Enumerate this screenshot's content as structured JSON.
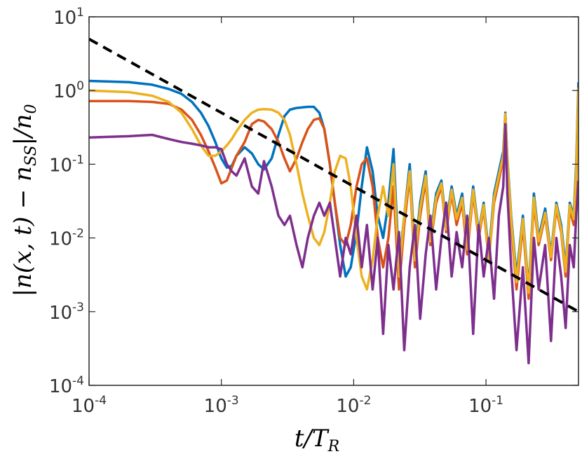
{
  "chart_data": {
    "type": "line",
    "xlabel": "t/T_R",
    "ylabel": "|n(x,t) − n_SS|/n_0",
    "x_scale": "log",
    "y_scale": "log",
    "xlim": [
      0.0001,
      0.5
    ],
    "ylim": [
      0.0001,
      10
    ],
    "grid": false,
    "x_ticks": [
      {
        "value": 0.0001,
        "base": "10",
        "exp": "-4"
      },
      {
        "value": 0.001,
        "base": "10",
        "exp": "-3"
      },
      {
        "value": 0.01,
        "base": "10",
        "exp": "-2"
      },
      {
        "value": 0.1,
        "base": "10",
        "exp": "-1"
      }
    ],
    "y_ticks": [
      {
        "value": 0.0001,
        "base": "10",
        "exp": "-4"
      },
      {
        "value": 0.001,
        "base": "10",
        "exp": "-3"
      },
      {
        "value": 0.01,
        "base": "10",
        "exp": "-2"
      },
      {
        "value": 0.1,
        "base": "10",
        "exp": "-1"
      },
      {
        "value": 1,
        "base": "10",
        "exp": "0"
      },
      {
        "value": 10,
        "base": "10",
        "exp": "1"
      }
    ],
    "series": [
      {
        "color": "#0072BD",
        "x": [
          0.0001,
          0.0002,
          0.0003,
          0.0004,
          0.0005,
          0.0006,
          0.0007,
          0.0008,
          0.0009,
          0.001,
          0.0011,
          0.0012,
          0.0013,
          0.0015,
          0.0017,
          0.0019,
          0.0021,
          0.0024,
          0.0027,
          0.003,
          0.0033,
          0.0037,
          0.0041,
          0.0045,
          0.005,
          0.0055,
          0.006,
          0.0066,
          0.0072,
          0.0079,
          0.0087,
          0.0095,
          0.0105,
          0.0115,
          0.0126,
          0.0139,
          0.0152,
          0.0167,
          0.0183,
          0.02,
          0.022,
          0.0241,
          0.0265,
          0.029,
          0.0318,
          0.035,
          0.038,
          0.042,
          0.046,
          0.05,
          0.055,
          0.06,
          0.066,
          0.072,
          0.08,
          0.088,
          0.096,
          0.105,
          0.115,
          0.125,
          0.135,
          0.14,
          0.145,
          0.155,
          0.17,
          0.19,
          0.21,
          0.23,
          0.25,
          0.28,
          0.31,
          0.34,
          0.37,
          0.4,
          0.43,
          0.46,
          0.48,
          0.5
        ],
        "y": [
          1.35,
          1.3,
          1.2,
          1.05,
          0.9,
          0.7,
          0.5,
          0.33,
          0.2,
          0.12,
          0.09,
          0.095,
          0.13,
          0.17,
          0.14,
          0.1,
          0.085,
          0.12,
          0.25,
          0.45,
          0.55,
          0.58,
          0.59,
          0.6,
          0.6,
          0.5,
          0.3,
          0.1,
          0.03,
          0.008,
          0.003,
          0.004,
          0.012,
          0.05,
          0.17,
          0.08,
          0.02,
          0.01,
          0.03,
          0.16,
          0.004,
          0.02,
          0.1,
          0.006,
          0.03,
          0.08,
          0.01,
          0.04,
          0.06,
          0.015,
          0.05,
          0.02,
          0.04,
          0.008,
          0.05,
          0.012,
          0.03,
          0.006,
          0.04,
          0.08,
          0.15,
          0.5,
          0.12,
          0.02,
          0.003,
          0.02,
          0.002,
          0.04,
          0.01,
          0.025,
          0.006,
          0.03,
          0.015,
          0.004,
          0.03,
          0.02,
          0.1,
          1.3
        ]
      },
      {
        "color": "#D95319",
        "x": [
          0.0001,
          0.0002,
          0.0003,
          0.0004,
          0.0005,
          0.0006,
          0.0007,
          0.0008,
          0.0009,
          0.001,
          0.0011,
          0.0012,
          0.0013,
          0.0015,
          0.0017,
          0.0019,
          0.0021,
          0.0024,
          0.0027,
          0.003,
          0.0033,
          0.0037,
          0.0041,
          0.0045,
          0.005,
          0.0055,
          0.006,
          0.0066,
          0.0072,
          0.0079,
          0.0087,
          0.0095,
          0.0105,
          0.0115,
          0.0126,
          0.0139,
          0.0152,
          0.0167,
          0.0183,
          0.02,
          0.022,
          0.0241,
          0.0265,
          0.029,
          0.0318,
          0.035,
          0.038,
          0.042,
          0.046,
          0.05,
          0.055,
          0.06,
          0.066,
          0.072,
          0.08,
          0.088,
          0.096,
          0.105,
          0.115,
          0.125,
          0.135,
          0.14,
          0.145,
          0.155,
          0.17,
          0.19,
          0.21,
          0.23,
          0.25,
          0.28,
          0.31,
          0.34,
          0.37,
          0.4,
          0.43,
          0.46,
          0.48,
          0.5
        ],
        "y": [
          0.72,
          0.72,
          0.7,
          0.66,
          0.55,
          0.4,
          0.25,
          0.15,
          0.09,
          0.055,
          0.06,
          0.09,
          0.13,
          0.2,
          0.35,
          0.4,
          0.38,
          0.3,
          0.2,
          0.12,
          0.08,
          0.12,
          0.2,
          0.3,
          0.4,
          0.42,
          0.3,
          0.1,
          0.03,
          0.01,
          0.008,
          0.015,
          0.05,
          0.1,
          0.12,
          0.05,
          0.01,
          0.004,
          0.01,
          0.05,
          0.002,
          0.015,
          0.07,
          0.004,
          0.02,
          0.06,
          0.008,
          0.03,
          0.05,
          0.012,
          0.04,
          0.015,
          0.03,
          0.006,
          0.04,
          0.01,
          0.025,
          0.005,
          0.03,
          0.06,
          0.12,
          0.45,
          0.1,
          0.015,
          0.002,
          0.015,
          0.0015,
          0.03,
          0.008,
          0.02,
          0.005,
          0.025,
          0.012,
          0.003,
          0.025,
          0.015,
          0.06,
          0.8
        ]
      },
      {
        "color": "#EDB120",
        "x": [
          0.0001,
          0.0002,
          0.0003,
          0.0004,
          0.0005,
          0.0006,
          0.0007,
          0.0008,
          0.0009,
          0.001,
          0.0011,
          0.0012,
          0.0013,
          0.0015,
          0.0017,
          0.0019,
          0.0021,
          0.0024,
          0.0027,
          0.003,
          0.0033,
          0.0037,
          0.0041,
          0.0045,
          0.005,
          0.0055,
          0.006,
          0.0066,
          0.0072,
          0.0079,
          0.0087,
          0.0095,
          0.0105,
          0.0115,
          0.0126,
          0.0139,
          0.0152,
          0.0167,
          0.0183,
          0.02,
          0.022,
          0.0241,
          0.0265,
          0.029,
          0.0318,
          0.035,
          0.038,
          0.042,
          0.046,
          0.05,
          0.055,
          0.06,
          0.066,
          0.072,
          0.08,
          0.088,
          0.096,
          0.105,
          0.115,
          0.125,
          0.135,
          0.14,
          0.145,
          0.155,
          0.17,
          0.19,
          0.21,
          0.23,
          0.25,
          0.28,
          0.31,
          0.34,
          0.37,
          0.4,
          0.43,
          0.46,
          0.48,
          0.5
        ],
        "y": [
          1.0,
          0.95,
          0.85,
          0.7,
          0.5,
          0.3,
          0.18,
          0.13,
          0.13,
          0.15,
          0.18,
          0.22,
          0.28,
          0.4,
          0.5,
          0.55,
          0.56,
          0.55,
          0.5,
          0.4,
          0.25,
          0.1,
          0.04,
          0.02,
          0.01,
          0.008,
          0.012,
          0.03,
          0.08,
          0.13,
          0.12,
          0.05,
          0.01,
          0.003,
          0.002,
          0.005,
          0.02,
          0.05,
          0.02,
          0.1,
          0.003,
          0.02,
          0.08,
          0.005,
          0.025,
          0.07,
          0.009,
          0.035,
          0.055,
          0.013,
          0.045,
          0.018,
          0.035,
          0.007,
          0.045,
          0.011,
          0.028,
          0.005,
          0.035,
          0.07,
          0.13,
          0.48,
          0.11,
          0.018,
          0.0025,
          0.018,
          0.0018,
          0.035,
          0.009,
          0.022,
          0.0055,
          0.028,
          0.013,
          0.0035,
          0.028,
          0.018,
          0.08,
          1.1
        ]
      },
      {
        "color": "#7E2F8E",
        "x": [
          0.0001,
          0.0002,
          0.0003,
          0.0004,
          0.0005,
          0.0006,
          0.0007,
          0.0008,
          0.0009,
          0.001,
          0.0011,
          0.0012,
          0.0013,
          0.0015,
          0.0017,
          0.0019,
          0.0021,
          0.0024,
          0.0027,
          0.003,
          0.0033,
          0.0037,
          0.0041,
          0.0045,
          0.005,
          0.0055,
          0.006,
          0.0066,
          0.0072,
          0.0079,
          0.0087,
          0.0095,
          0.0105,
          0.0115,
          0.0126,
          0.0139,
          0.0152,
          0.0167,
          0.0183,
          0.02,
          0.022,
          0.0241,
          0.0265,
          0.029,
          0.0318,
          0.035,
          0.038,
          0.042,
          0.046,
          0.05,
          0.055,
          0.06,
          0.066,
          0.072,
          0.08,
          0.088,
          0.096,
          0.105,
          0.115,
          0.125,
          0.135,
          0.14,
          0.145,
          0.155,
          0.17,
          0.19,
          0.21,
          0.23,
          0.25,
          0.28,
          0.31,
          0.34,
          0.37,
          0.4,
          0.43,
          0.46,
          0.48,
          0.5
        ],
        "y": [
          0.23,
          0.24,
          0.25,
          0.22,
          0.2,
          0.19,
          0.18,
          0.17,
          0.17,
          0.16,
          0.1,
          0.08,
          0.07,
          0.12,
          0.05,
          0.04,
          0.11,
          0.05,
          0.02,
          0.015,
          0.02,
          0.008,
          0.004,
          0.01,
          0.02,
          0.03,
          0.02,
          0.03,
          0.01,
          0.003,
          0.01,
          0.006,
          0.02,
          0.004,
          0.015,
          0.002,
          0.01,
          0.0005,
          0.008,
          0.002,
          0.012,
          0.0003,
          0.004,
          0.015,
          0.0008,
          0.006,
          0.02,
          0.002,
          0.01,
          0.03,
          0.003,
          0.012,
          0.004,
          0.02,
          0.0005,
          0.015,
          0.003,
          0.01,
          0.0015,
          0.02,
          0.05,
          0.35,
          0.04,
          0.004,
          0.0003,
          0.004,
          0.0002,
          0.01,
          0.002,
          0.008,
          0.0004,
          0.01,
          0.003,
          0.0006,
          0.008,
          0.004,
          0.02,
          0.06
        ]
      },
      {
        "color": "#000000",
        "dashed": true,
        "x": [
          0.0001,
          0.5
        ],
        "y": [
          5.0,
          0.001
        ]
      }
    ]
  }
}
